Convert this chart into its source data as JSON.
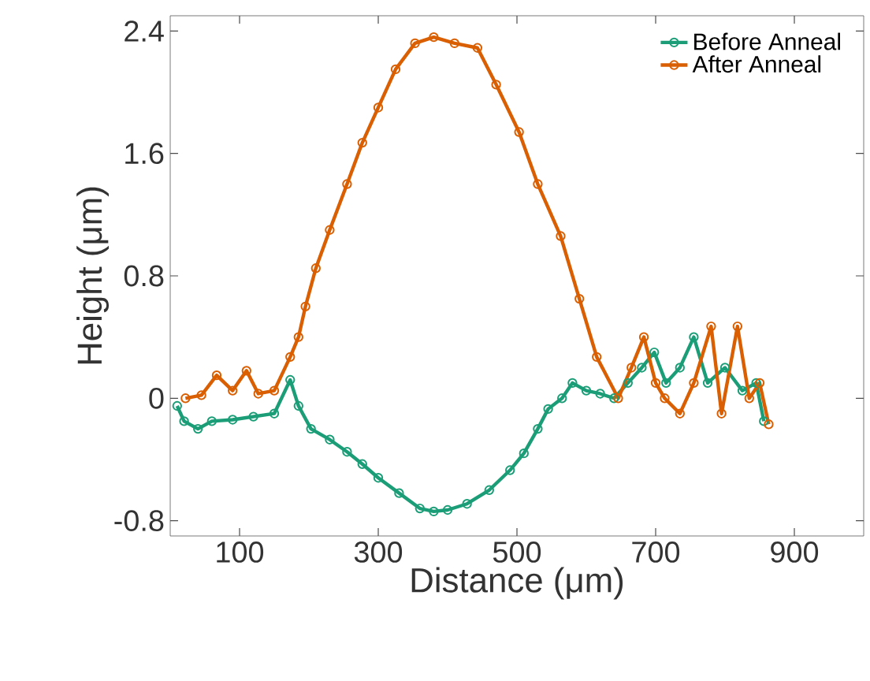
{
  "chart_data": {
    "type": "line",
    "xlabel": "Distance (μm)",
    "ylabel": "Height (μm)",
    "xlim": [
      0,
      1000
    ],
    "ylim": [
      -0.9,
      2.5
    ],
    "xticks": [
      100,
      300,
      500,
      700,
      900
    ],
    "yticks": [
      -0.8,
      0,
      0.8,
      1.6,
      2.4
    ],
    "legend": "top right",
    "marker": "circle",
    "line_style": "solid",
    "grid": false,
    "series": [
      {
        "name": "Before Anneal",
        "color": "#1b9e77",
        "x": [
          10,
          20,
          40,
          60,
          90,
          120,
          150,
          173,
          185,
          203,
          230,
          255,
          277,
          300,
          330,
          360,
          380,
          400,
          428,
          460,
          490,
          510,
          530,
          545,
          565,
          580,
          600,
          620,
          640,
          660,
          680,
          698,
          715,
          735,
          755,
          775,
          800,
          825,
          845,
          856
        ],
        "values": [
          -0.05,
          -0.15,
          -0.2,
          -0.15,
          -0.14,
          -0.12,
          -0.1,
          0.12,
          -0.05,
          -0.2,
          -0.27,
          -0.35,
          -0.43,
          -0.52,
          -0.62,
          -0.72,
          -0.74,
          -0.73,
          -0.69,
          -0.6,
          -0.47,
          -0.36,
          -0.2,
          -0.07,
          0.0,
          0.1,
          0.05,
          0.03,
          0.0,
          0.1,
          0.2,
          0.3,
          0.1,
          0.2,
          0.4,
          0.1,
          0.2,
          0.05,
          0.1,
          -0.15
        ]
      },
      {
        "name": "After Anneal",
        "color": "#d95f02",
        "x": [
          22,
          45,
          67,
          90,
          110,
          127,
          150,
          173,
          185,
          195,
          210,
          230,
          255,
          277,
          300,
          325,
          353,
          380,
          410,
          443,
          470,
          503,
          530,
          563,
          590,
          615,
          646,
          665,
          683,
          700,
          713,
          735,
          755,
          780,
          795,
          818,
          835,
          850,
          863
        ],
        "values": [
          0.0,
          0.02,
          0.15,
          0.05,
          0.18,
          0.03,
          0.05,
          0.27,
          0.4,
          0.6,
          0.85,
          1.1,
          1.4,
          1.67,
          1.9,
          2.15,
          2.32,
          2.36,
          2.32,
          2.29,
          2.05,
          1.74,
          1.4,
          1.06,
          0.65,
          0.27,
          0.0,
          0.2,
          0.4,
          0.1,
          0.0,
          -0.1,
          0.1,
          0.47,
          -0.1,
          0.47,
          0.0,
          0.1,
          -0.17
        ]
      }
    ]
  }
}
